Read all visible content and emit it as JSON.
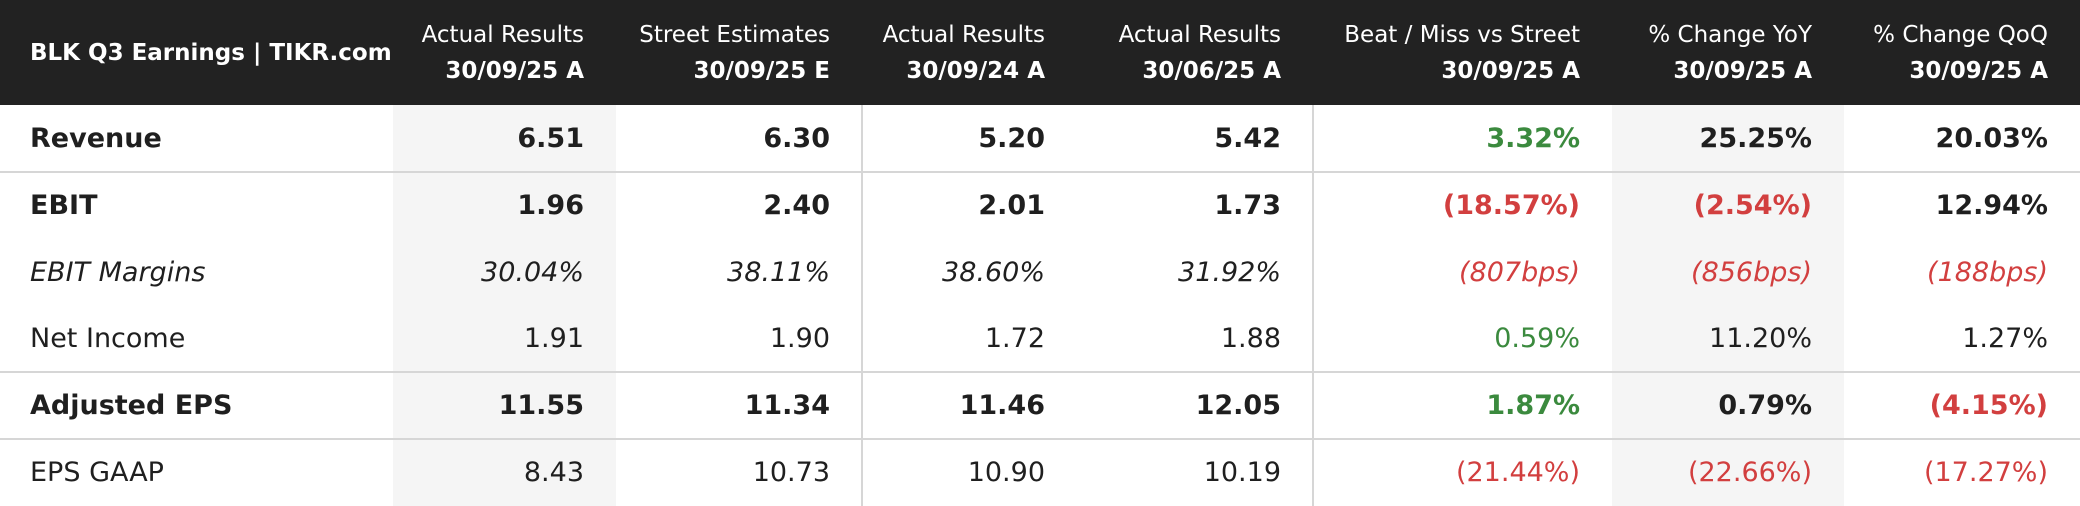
{
  "header": {
    "title": "BLK Q3 Earnings | TIKR.com",
    "columns": [
      {
        "line1": "Actual Results",
        "line2": "30/09/25 A"
      },
      {
        "line1": "Street Estimates",
        "line2": "30/09/25 E"
      },
      {
        "line1": "Actual Results",
        "line2": "30/09/24 A"
      },
      {
        "line1": "Actual Results",
        "line2": "30/06/25 A"
      },
      {
        "line1": "Beat / Miss vs Street",
        "line2": "30/09/25 A"
      },
      {
        "line1": "% Change YoY",
        "line2": "30/09/25 A"
      },
      {
        "line1": "% Change QoQ",
        "line2": "30/09/25 A"
      }
    ]
  },
  "table": {
    "rows": [
      {
        "label": "Revenue",
        "style": "bold",
        "border": true,
        "cells": [
          "6.51",
          "6.30",
          "5.20",
          "5.42",
          "3.32%",
          "25.25%",
          "20.03%"
        ],
        "colors": [
          "#1f1f1f",
          "#1f1f1f",
          "#1f1f1f",
          "#1f1f1f",
          "#3b8a3e",
          "#1f1f1f",
          "#1f1f1f"
        ]
      },
      {
        "label": "EBIT",
        "style": "bold",
        "border": false,
        "cells": [
          "1.96",
          "2.40",
          "2.01",
          "1.73",
          "(18.57%)",
          "(2.54%)",
          "12.94%"
        ],
        "colors": [
          "#1f1f1f",
          "#1f1f1f",
          "#1f1f1f",
          "#1f1f1f",
          "#d23f3f",
          "#d23f3f",
          "#1f1f1f"
        ]
      },
      {
        "label": "EBIT Margins",
        "style": "italic",
        "border": false,
        "cells": [
          "30.04%",
          "38.11%",
          "38.60%",
          "31.92%",
          "(807bps)",
          "(856bps)",
          "(188bps)"
        ],
        "colors": [
          "#1f1f1f",
          "#1f1f1f",
          "#1f1f1f",
          "#1f1f1f",
          "#d23f3f",
          "#d23f3f",
          "#d23f3f"
        ]
      },
      {
        "label": "Net Income",
        "style": "normal",
        "border": true,
        "cells": [
          "1.91",
          "1.90",
          "1.72",
          "1.88",
          "0.59%",
          "11.20%",
          "1.27%"
        ],
        "colors": [
          "#1f1f1f",
          "#1f1f1f",
          "#1f1f1f",
          "#1f1f1f",
          "#3b8a3e",
          "#1f1f1f",
          "#1f1f1f"
        ]
      },
      {
        "label": "Adjusted EPS",
        "style": "bold",
        "border": true,
        "cells": [
          "11.55",
          "11.34",
          "11.46",
          "12.05",
          "1.87%",
          "0.79%",
          "(4.15%)"
        ],
        "colors": [
          "#1f1f1f",
          "#1f1f1f",
          "#1f1f1f",
          "#1f1f1f",
          "#3b8a3e",
          "#1f1f1f",
          "#d23f3f"
        ]
      },
      {
        "label": "EPS GAAP",
        "style": "normal",
        "border": false,
        "cells": [
          "8.43",
          "10.73",
          "10.90",
          "10.19",
          "(21.44%)",
          "(22.66%)",
          "(17.27%)"
        ],
        "colors": [
          "#1f1f1f",
          "#1f1f1f",
          "#1f1f1f",
          "#1f1f1f",
          "#d23f3f",
          "#d23f3f",
          "#d23f3f"
        ]
      }
    ]
  }
}
